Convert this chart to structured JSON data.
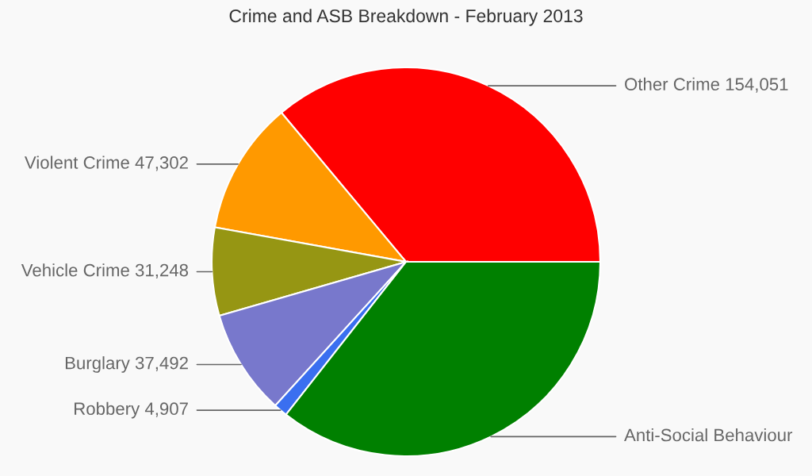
{
  "chart_data": {
    "type": "pie",
    "title": "Crime and ASB Breakdown - February 2013",
    "categories": [
      "Other Crime",
      "Violent Crime",
      "Vehicle Crime",
      "Burglary",
      "Robbery",
      "Anti-Social Behaviour"
    ],
    "values": [
      154051,
      47302,
      31248,
      37492,
      4907,
      152000
    ],
    "value_labels": [
      "154,051",
      "47,302",
      "31,248",
      "37,492",
      "4,907",
      null
    ],
    "colors": [
      "#ff0000",
      "#ff9900",
      "#969613",
      "#7878cc",
      "#3a6ff0",
      "#008000"
    ]
  }
}
